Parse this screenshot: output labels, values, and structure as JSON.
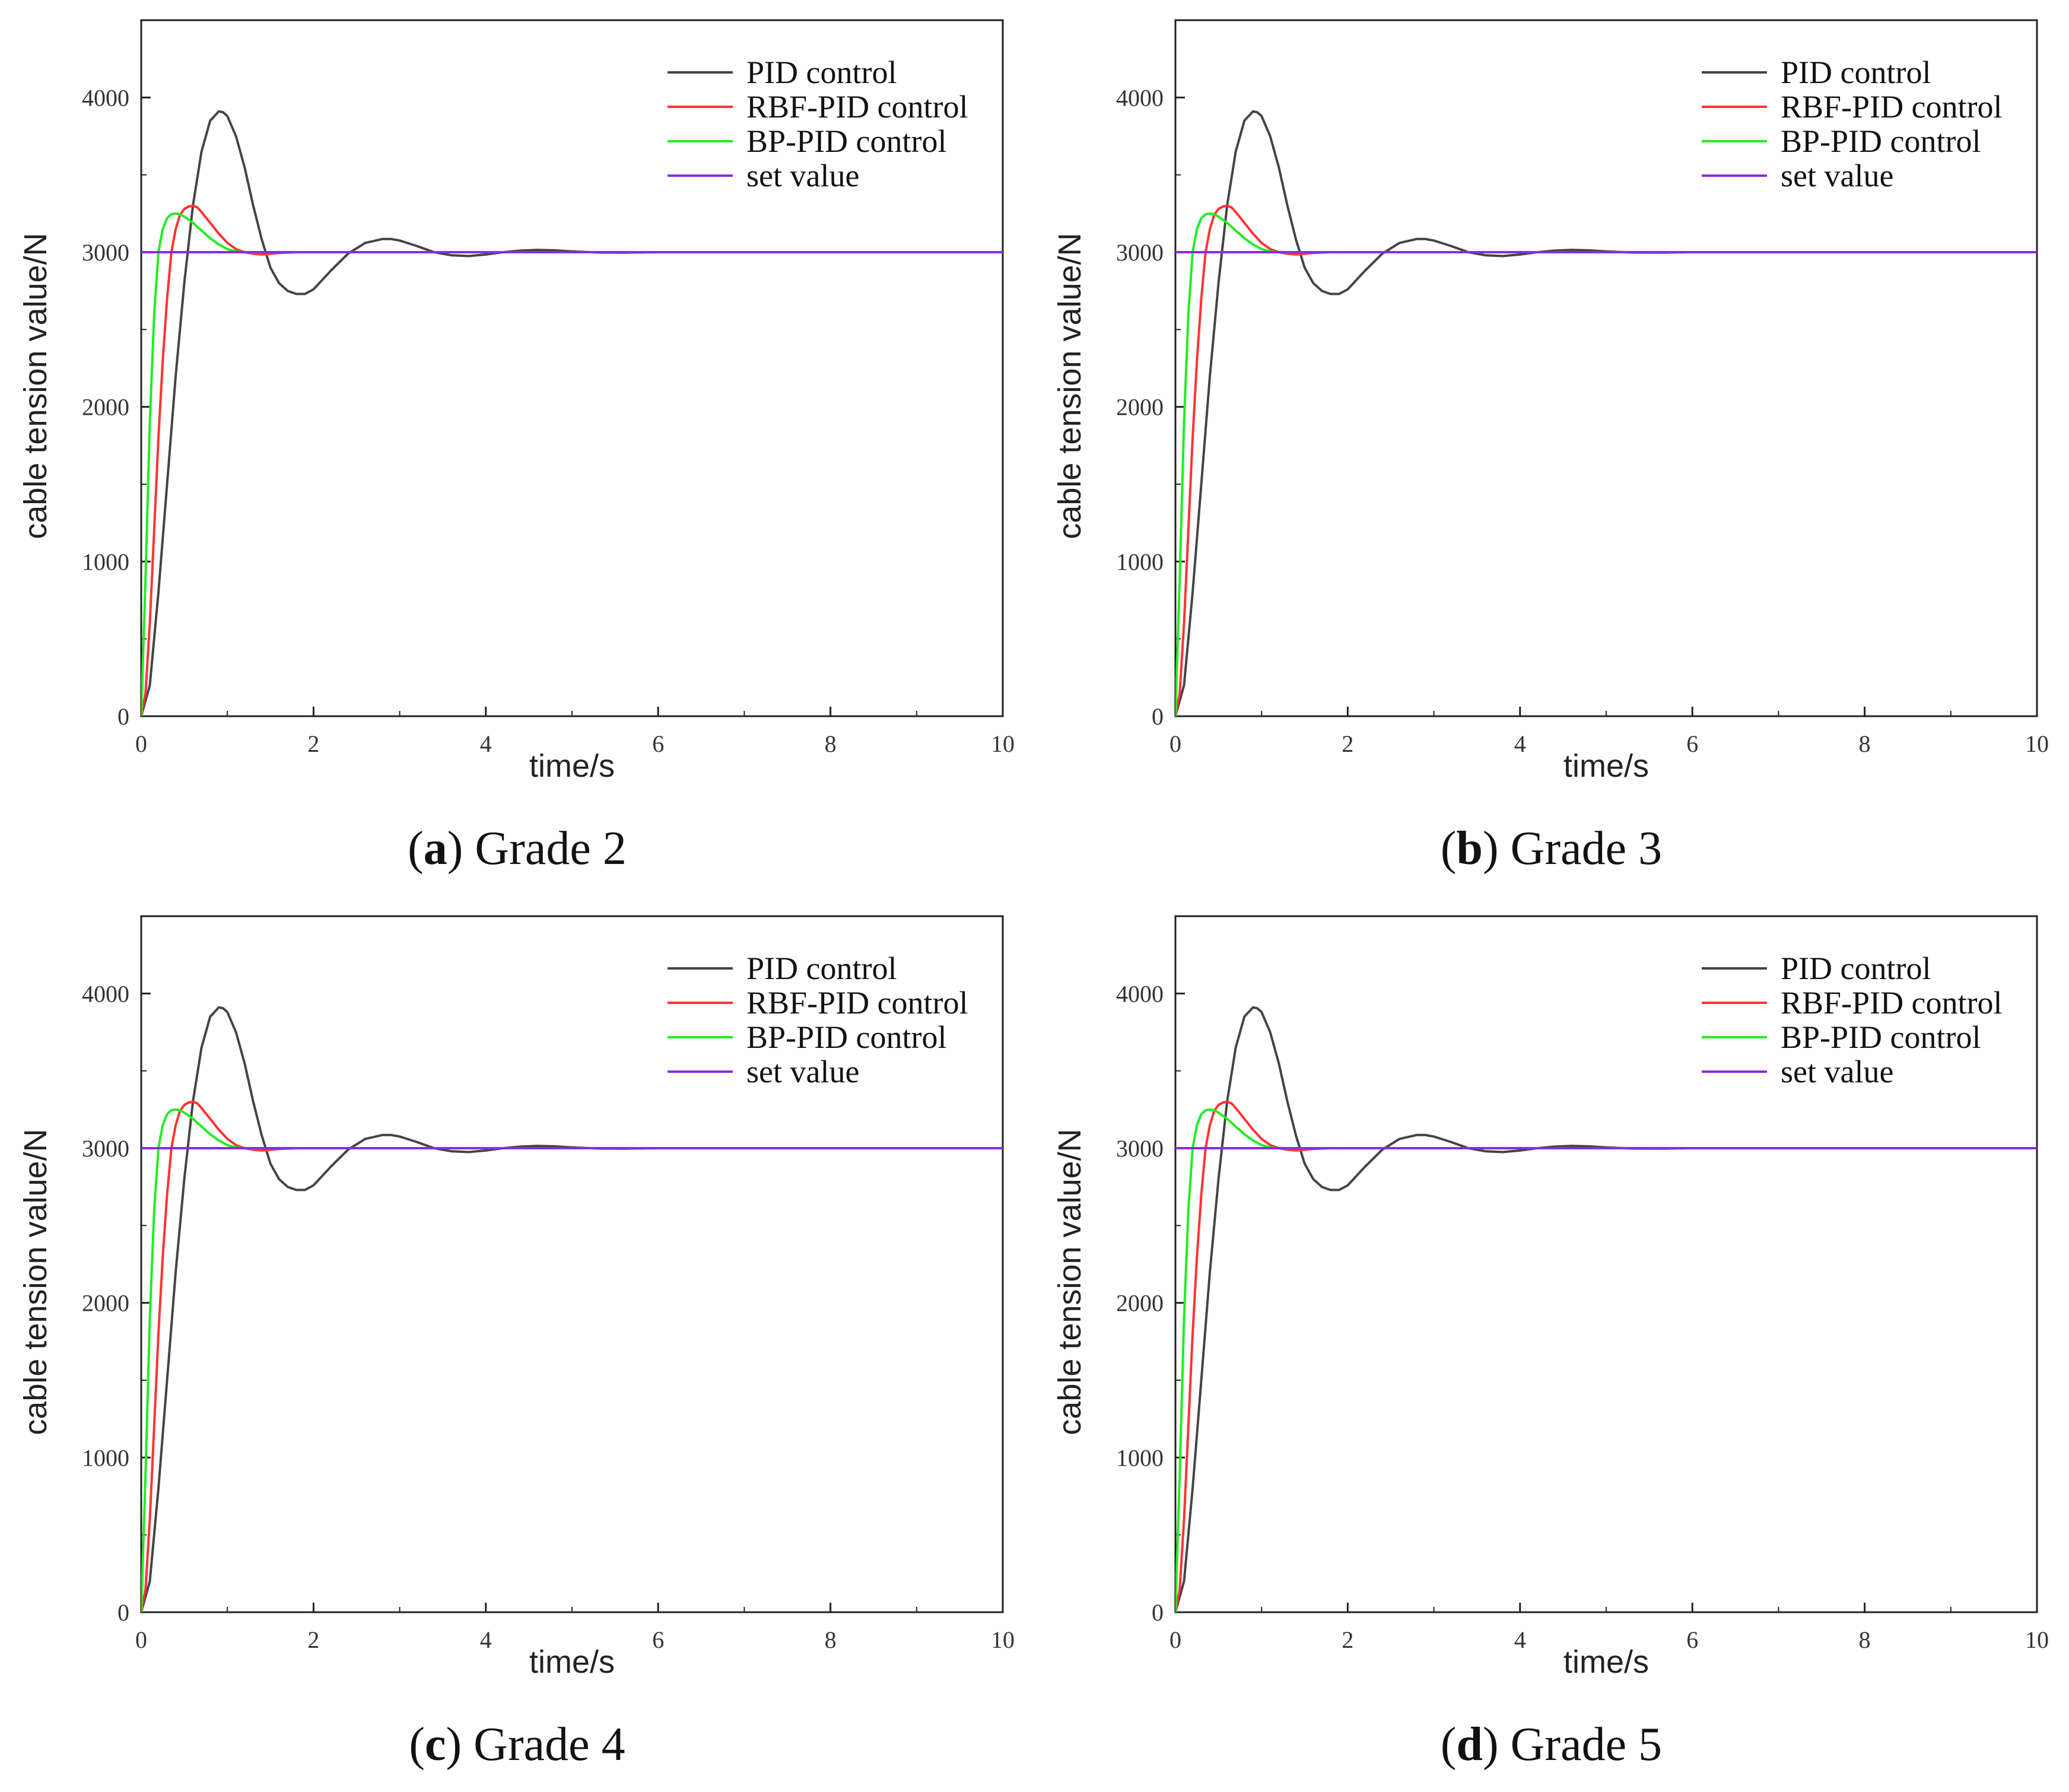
{
  "figure": {
    "background": "#ffffff"
  },
  "chart_data": [
    {
      "type": "line",
      "panel_letter": "a",
      "caption": "Grade 2",
      "title": "",
      "xlabel": "time/s",
      "ylabel": "cable tension value/N",
      "xlim": [
        0,
        10
      ],
      "ylim": [
        0,
        4500
      ],
      "xticks": [
        0,
        2,
        4,
        6,
        8,
        10
      ],
      "yticks": [
        0,
        1000,
        2000,
        3000,
        4000
      ],
      "grid": false,
      "legend_position": "top-right",
      "series": [
        {
          "name": "PID control",
          "color": "#444444",
          "x": [
            0,
            0.1,
            0.2,
            0.3,
            0.4,
            0.5,
            0.6,
            0.7,
            0.8,
            0.9,
            0.95,
            1.0,
            1.1,
            1.2,
            1.3,
            1.4,
            1.5,
            1.6,
            1.7,
            1.8,
            1.9,
            2.0,
            2.2,
            2.4,
            2.6,
            2.8,
            2.9,
            3.0,
            3.2,
            3.4,
            3.6,
            3.8,
            4.0,
            4.2,
            4.4,
            4.6,
            4.8,
            5.0,
            5.3,
            5.6,
            6.0,
            7.0,
            8.0,
            10.0
          ],
          "y": [
            0,
            200,
            800,
            1500,
            2200,
            2800,
            3300,
            3650,
            3850,
            3910,
            3905,
            3880,
            3750,
            3550,
            3300,
            3080,
            2900,
            2800,
            2750,
            2730,
            2730,
            2760,
            2880,
            2990,
            3060,
            3085,
            3085,
            3075,
            3040,
            3000,
            2980,
            2975,
            2985,
            3000,
            3010,
            3015,
            3012,
            3005,
            2998,
            2997,
            3000,
            3000,
            3000,
            3000
          ]
        },
        {
          "name": "RBF-PID control",
          "color": "#ff3333",
          "x": [
            0,
            0.05,
            0.1,
            0.15,
            0.2,
            0.25,
            0.3,
            0.35,
            0.4,
            0.45,
            0.5,
            0.55,
            0.6,
            0.65,
            0.7,
            0.8,
            0.9,
            1.0,
            1.1,
            1.2,
            1.3,
            1.4,
            1.5,
            1.6,
            1.8,
            2.0,
            2.5,
            10.0
          ],
          "y": [
            0,
            150,
            600,
            1200,
            1800,
            2300,
            2700,
            3000,
            3150,
            3240,
            3280,
            3295,
            3300,
            3290,
            3260,
            3190,
            3120,
            3060,
            3020,
            3000,
            2990,
            2985,
            2990,
            2995,
            3000,
            3000,
            3000,
            3000
          ]
        },
        {
          "name": "BP-PID control",
          "color": "#22ee22",
          "x": [
            0,
            0.05,
            0.1,
            0.15,
            0.2,
            0.25,
            0.3,
            0.35,
            0.4,
            0.45,
            0.5,
            0.6,
            0.7,
            0.8,
            0.9,
            1.0,
            1.1,
            1.2,
            1.3,
            1.5,
            1.7,
            2.0,
            10.0
          ],
          "y": [
            0,
            900,
            1900,
            2600,
            3000,
            3150,
            3220,
            3245,
            3250,
            3245,
            3230,
            3190,
            3140,
            3090,
            3050,
            3020,
            3005,
            3000,
            2998,
            3000,
            3000,
            3000,
            3000
          ]
        },
        {
          "name": "set value",
          "color": "#8a2be2",
          "x": [
            0,
            10
          ],
          "y": [
            3000,
            3000
          ]
        }
      ]
    },
    {
      "type": "line",
      "panel_letter": "b",
      "caption": "Grade 3",
      "title": "",
      "xlabel": "time/s",
      "ylabel": "cable tension value/N",
      "xlim": [
        0,
        10
      ],
      "ylim": [
        0,
        4500
      ],
      "xticks": [
        0,
        2,
        4,
        6,
        8,
        10
      ],
      "yticks": [
        0,
        1000,
        2000,
        3000,
        4000
      ],
      "grid": false,
      "legend_position": "top-right",
      "series": [
        {
          "name": "PID control",
          "color": "#444444",
          "x": [
            0,
            0.1,
            0.2,
            0.3,
            0.4,
            0.5,
            0.6,
            0.7,
            0.8,
            0.9,
            0.95,
            1.0,
            1.1,
            1.2,
            1.3,
            1.4,
            1.5,
            1.6,
            1.7,
            1.8,
            1.9,
            2.0,
            2.2,
            2.4,
            2.6,
            2.8,
            2.9,
            3.0,
            3.2,
            3.4,
            3.6,
            3.8,
            4.0,
            4.2,
            4.4,
            4.6,
            4.8,
            5.0,
            5.3,
            5.6,
            6.0,
            7.0,
            8.0,
            10.0
          ],
          "y": [
            0,
            200,
            800,
            1500,
            2200,
            2800,
            3300,
            3650,
            3850,
            3910,
            3905,
            3880,
            3750,
            3550,
            3300,
            3080,
            2900,
            2800,
            2750,
            2730,
            2730,
            2760,
            2880,
            2990,
            3060,
            3085,
            3085,
            3075,
            3040,
            3000,
            2980,
            2975,
            2985,
            3000,
            3010,
            3015,
            3012,
            3005,
            2998,
            2997,
            3000,
            3000,
            3000,
            3000
          ]
        },
        {
          "name": "RBF-PID control",
          "color": "#ff3333",
          "x": [
            0,
            0.05,
            0.1,
            0.15,
            0.2,
            0.25,
            0.3,
            0.35,
            0.4,
            0.45,
            0.5,
            0.55,
            0.6,
            0.65,
            0.7,
            0.8,
            0.9,
            1.0,
            1.1,
            1.2,
            1.3,
            1.4,
            1.5,
            1.6,
            1.8,
            2.0,
            2.5,
            10.0
          ],
          "y": [
            0,
            150,
            600,
            1200,
            1800,
            2300,
            2700,
            3000,
            3150,
            3240,
            3280,
            3295,
            3300,
            3290,
            3260,
            3190,
            3120,
            3060,
            3020,
            3000,
            2990,
            2985,
            2990,
            2995,
            3000,
            3000,
            3000,
            3000
          ]
        },
        {
          "name": "BP-PID control",
          "color": "#22ee22",
          "x": [
            0,
            0.05,
            0.1,
            0.15,
            0.2,
            0.25,
            0.3,
            0.35,
            0.4,
            0.45,
            0.5,
            0.6,
            0.7,
            0.8,
            0.9,
            1.0,
            1.1,
            1.2,
            1.3,
            1.5,
            1.7,
            2.0,
            10.0
          ],
          "y": [
            0,
            900,
            1900,
            2600,
            3000,
            3150,
            3220,
            3245,
            3250,
            3245,
            3230,
            3190,
            3140,
            3090,
            3050,
            3020,
            3005,
            3000,
            2998,
            3000,
            3000,
            3000,
            3000
          ]
        },
        {
          "name": "set value",
          "color": "#8a2be2",
          "x": [
            0,
            10
          ],
          "y": [
            3000,
            3000
          ]
        }
      ]
    },
    {
      "type": "line",
      "panel_letter": "c",
      "caption": "Grade 4",
      "title": "",
      "xlabel": "time/s",
      "ylabel": "cable tension value/N",
      "xlim": [
        0,
        10
      ],
      "ylim": [
        0,
        4500
      ],
      "xticks": [
        0,
        2,
        4,
        6,
        8,
        10
      ],
      "yticks": [
        0,
        1000,
        2000,
        3000,
        4000
      ],
      "grid": false,
      "legend_position": "top-right",
      "series": [
        {
          "name": "PID control",
          "color": "#444444",
          "x": [
            0,
            0.1,
            0.2,
            0.3,
            0.4,
            0.5,
            0.6,
            0.7,
            0.8,
            0.9,
            0.95,
            1.0,
            1.1,
            1.2,
            1.3,
            1.4,
            1.5,
            1.6,
            1.7,
            1.8,
            1.9,
            2.0,
            2.2,
            2.4,
            2.6,
            2.8,
            2.9,
            3.0,
            3.2,
            3.4,
            3.6,
            3.8,
            4.0,
            4.2,
            4.4,
            4.6,
            4.8,
            5.0,
            5.3,
            5.6,
            6.0,
            7.0,
            8.0,
            10.0
          ],
          "y": [
            0,
            200,
            800,
            1500,
            2200,
            2800,
            3300,
            3650,
            3850,
            3910,
            3905,
            3880,
            3750,
            3550,
            3300,
            3080,
            2900,
            2800,
            2750,
            2730,
            2730,
            2760,
            2880,
            2990,
            3060,
            3085,
            3085,
            3075,
            3040,
            3000,
            2980,
            2975,
            2985,
            3000,
            3010,
            3015,
            3012,
            3005,
            2998,
            2997,
            3000,
            3000,
            3000,
            3000
          ]
        },
        {
          "name": "RBF-PID control",
          "color": "#ff3333",
          "x": [
            0,
            0.05,
            0.1,
            0.15,
            0.2,
            0.25,
            0.3,
            0.35,
            0.4,
            0.45,
            0.5,
            0.55,
            0.6,
            0.65,
            0.7,
            0.8,
            0.9,
            1.0,
            1.1,
            1.2,
            1.3,
            1.4,
            1.5,
            1.6,
            1.8,
            2.0,
            2.5,
            10.0
          ],
          "y": [
            0,
            150,
            600,
            1200,
            1800,
            2300,
            2700,
            3000,
            3150,
            3240,
            3280,
            3295,
            3300,
            3290,
            3260,
            3190,
            3120,
            3060,
            3020,
            3000,
            2990,
            2985,
            2990,
            2995,
            3000,
            3000,
            3000,
            3000
          ]
        },
        {
          "name": "BP-PID control",
          "color": "#22ee22",
          "x": [
            0,
            0.05,
            0.1,
            0.15,
            0.2,
            0.25,
            0.3,
            0.35,
            0.4,
            0.45,
            0.5,
            0.6,
            0.7,
            0.8,
            0.9,
            1.0,
            1.1,
            1.2,
            1.3,
            1.5,
            1.7,
            2.0,
            10.0
          ],
          "y": [
            0,
            900,
            1900,
            2600,
            3000,
            3150,
            3220,
            3245,
            3250,
            3245,
            3230,
            3190,
            3140,
            3090,
            3050,
            3020,
            3005,
            3000,
            2998,
            3000,
            3000,
            3000,
            3000
          ]
        },
        {
          "name": "set value",
          "color": "#8a2be2",
          "x": [
            0,
            10
          ],
          "y": [
            3000,
            3000
          ]
        }
      ]
    },
    {
      "type": "line",
      "panel_letter": "d",
      "caption": "Grade 5",
      "title": "",
      "xlabel": "time/s",
      "ylabel": "cable tension value/N",
      "xlim": [
        0,
        10
      ],
      "ylim": [
        0,
        4500
      ],
      "xticks": [
        0,
        2,
        4,
        6,
        8,
        10
      ],
      "yticks": [
        0,
        1000,
        2000,
        3000,
        4000
      ],
      "grid": false,
      "legend_position": "top-right",
      "series": [
        {
          "name": "PID control",
          "color": "#444444",
          "x": [
            0,
            0.1,
            0.2,
            0.3,
            0.4,
            0.5,
            0.6,
            0.7,
            0.8,
            0.9,
            0.95,
            1.0,
            1.1,
            1.2,
            1.3,
            1.4,
            1.5,
            1.6,
            1.7,
            1.8,
            1.9,
            2.0,
            2.2,
            2.4,
            2.6,
            2.8,
            2.9,
            3.0,
            3.2,
            3.4,
            3.6,
            3.8,
            4.0,
            4.2,
            4.4,
            4.6,
            4.8,
            5.0,
            5.3,
            5.6,
            6.0,
            7.0,
            8.0,
            10.0
          ],
          "y": [
            0,
            200,
            800,
            1500,
            2200,
            2800,
            3300,
            3650,
            3850,
            3910,
            3905,
            3880,
            3750,
            3550,
            3300,
            3080,
            2900,
            2800,
            2750,
            2730,
            2730,
            2760,
            2880,
            2990,
            3060,
            3085,
            3085,
            3075,
            3040,
            3000,
            2980,
            2975,
            2985,
            3000,
            3010,
            3015,
            3012,
            3005,
            2998,
            2997,
            3000,
            3000,
            3000,
            3000
          ]
        },
        {
          "name": "RBF-PID control",
          "color": "#ff3333",
          "x": [
            0,
            0.05,
            0.1,
            0.15,
            0.2,
            0.25,
            0.3,
            0.35,
            0.4,
            0.45,
            0.5,
            0.55,
            0.6,
            0.65,
            0.7,
            0.8,
            0.9,
            1.0,
            1.1,
            1.2,
            1.3,
            1.4,
            1.5,
            1.6,
            1.8,
            2.0,
            2.5,
            10.0
          ],
          "y": [
            0,
            150,
            600,
            1200,
            1800,
            2300,
            2700,
            3000,
            3150,
            3240,
            3280,
            3295,
            3300,
            3290,
            3260,
            3190,
            3120,
            3060,
            3020,
            3000,
            2990,
            2985,
            2990,
            2995,
            3000,
            3000,
            3000,
            3000
          ]
        },
        {
          "name": "BP-PID control",
          "color": "#22ee22",
          "x": [
            0,
            0.05,
            0.1,
            0.15,
            0.2,
            0.25,
            0.3,
            0.35,
            0.4,
            0.45,
            0.5,
            0.6,
            0.7,
            0.8,
            0.9,
            1.0,
            1.1,
            1.2,
            1.3,
            1.5,
            1.7,
            2.0,
            10.0
          ],
          "y": [
            0,
            900,
            1900,
            2600,
            3000,
            3150,
            3220,
            3245,
            3250,
            3245,
            3230,
            3190,
            3140,
            3090,
            3050,
            3020,
            3005,
            3000,
            2998,
            3000,
            3000,
            3000,
            3000
          ]
        },
        {
          "name": "set value",
          "color": "#8a2be2",
          "x": [
            0,
            10
          ],
          "y": [
            3000,
            3000
          ]
        }
      ]
    }
  ]
}
